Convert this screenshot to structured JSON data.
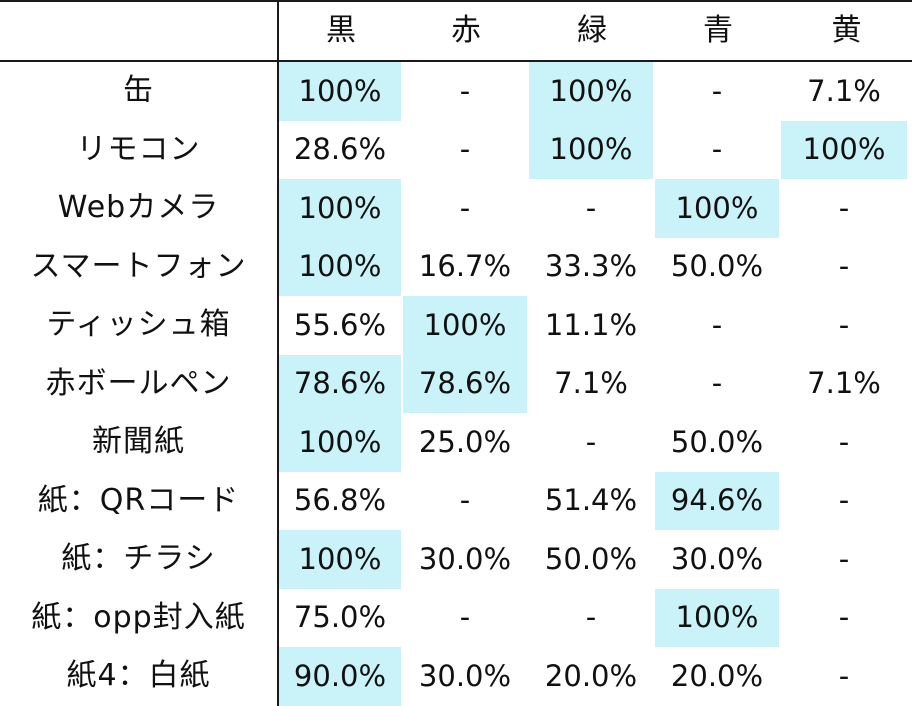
{
  "table": {
    "corner": "",
    "columns": [
      "黒",
      "赤",
      "緑",
      "青",
      "黄"
    ],
    "highlight_color": "#c9f3f8",
    "rows": [
      {
        "label": "缶",
        "cells": [
          {
            "v": "100%",
            "hl": true
          },
          {
            "v": "-",
            "hl": false
          },
          {
            "v": "100%",
            "hl": true
          },
          {
            "v": "-",
            "hl": false
          },
          {
            "v": "7.1%",
            "hl": false
          }
        ]
      },
      {
        "label": "リモコン",
        "cells": [
          {
            "v": "28.6%",
            "hl": false
          },
          {
            "v": "-",
            "hl": false
          },
          {
            "v": "100%",
            "hl": true
          },
          {
            "v": "-",
            "hl": false
          },
          {
            "v": "100%",
            "hl": true
          }
        ]
      },
      {
        "label": "Webカメラ",
        "cells": [
          {
            "v": "100%",
            "hl": true
          },
          {
            "v": "-",
            "hl": false
          },
          {
            "v": "-",
            "hl": false
          },
          {
            "v": "100%",
            "hl": true
          },
          {
            "v": "-",
            "hl": false
          }
        ]
      },
      {
        "label": "スマートフォン",
        "cells": [
          {
            "v": "100%",
            "hl": true
          },
          {
            "v": "16.7%",
            "hl": false
          },
          {
            "v": "33.3%",
            "hl": false
          },
          {
            "v": "50.0%",
            "hl": false
          },
          {
            "v": "-",
            "hl": false
          }
        ]
      },
      {
        "label": "ティッシュ箱",
        "cells": [
          {
            "v": "55.6%",
            "hl": false
          },
          {
            "v": "100%",
            "hl": true
          },
          {
            "v": "11.1%",
            "hl": false
          },
          {
            "v": "-",
            "hl": false
          },
          {
            "v": "-",
            "hl": false
          }
        ]
      },
      {
        "label": "赤ボールペン",
        "cells": [
          {
            "v": "78.6%",
            "hl": true
          },
          {
            "v": "78.6%",
            "hl": true
          },
          {
            "v": "7.1%",
            "hl": false
          },
          {
            "v": "-",
            "hl": false
          },
          {
            "v": "7.1%",
            "hl": false
          }
        ]
      },
      {
        "label": "新聞紙",
        "cells": [
          {
            "v": "100%",
            "hl": true
          },
          {
            "v": "25.0%",
            "hl": false
          },
          {
            "v": "-",
            "hl": false
          },
          {
            "v": "50.0%",
            "hl": false
          },
          {
            "v": "-",
            "hl": false
          }
        ]
      },
      {
        "label": "紙：QRコード",
        "cells": [
          {
            "v": "56.8%",
            "hl": false
          },
          {
            "v": "-",
            "hl": false
          },
          {
            "v": "51.4%",
            "hl": false
          },
          {
            "v": "94.6%",
            "hl": true
          },
          {
            "v": "-",
            "hl": false
          }
        ]
      },
      {
        "label": "紙：チラシ",
        "cells": [
          {
            "v": "100%",
            "hl": true
          },
          {
            "v": "30.0%",
            "hl": false
          },
          {
            "v": "50.0%",
            "hl": false
          },
          {
            "v": "30.0%",
            "hl": false
          },
          {
            "v": "-",
            "hl": false
          }
        ]
      },
      {
        "label": "紙：opp封入紙",
        "cells": [
          {
            "v": "75.0%",
            "hl": false
          },
          {
            "v": "-",
            "hl": false
          },
          {
            "v": "-",
            "hl": false
          },
          {
            "v": "100%",
            "hl": true
          },
          {
            "v": "-",
            "hl": false
          }
        ]
      },
      {
        "label": "紙4：白紙",
        "cells": [
          {
            "v": "90.0%",
            "hl": true
          },
          {
            "v": "30.0%",
            "hl": false
          },
          {
            "v": "20.0%",
            "hl": false
          },
          {
            "v": "20.0%",
            "hl": false
          },
          {
            "v": "-",
            "hl": false
          }
        ]
      }
    ]
  }
}
